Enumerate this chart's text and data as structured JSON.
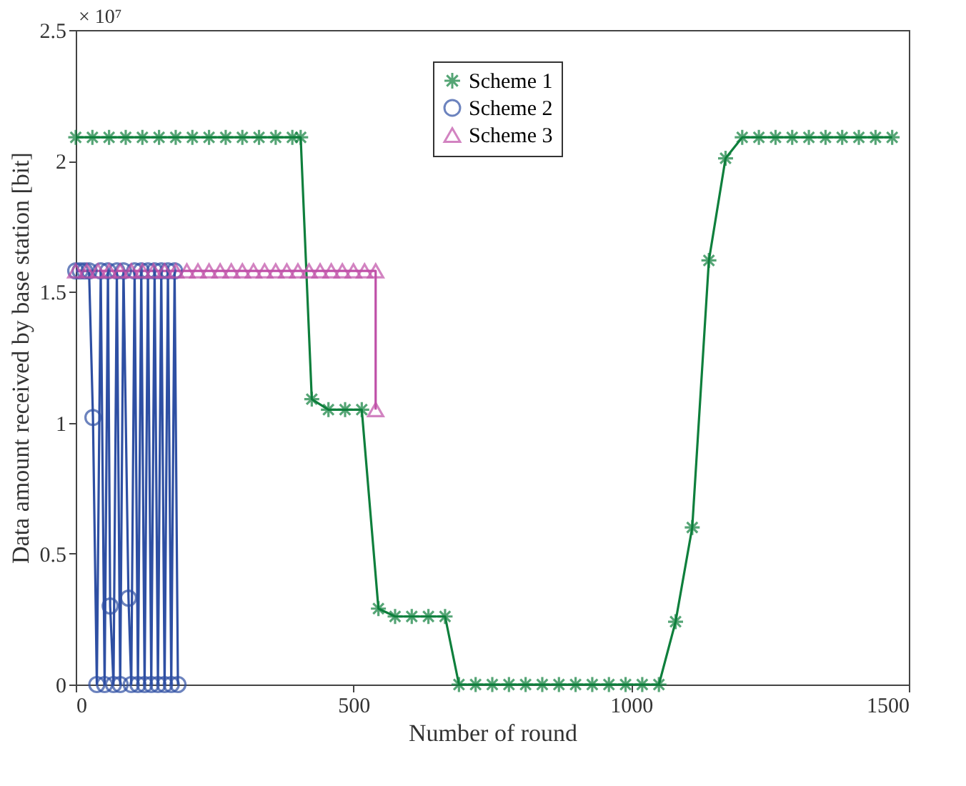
{
  "chart_data": {
    "type": "line",
    "xlabel": "Number of round",
    "ylabel": "Data amount received by base station [bit]",
    "annotations": [
      "× 10⁷"
    ],
    "xlim": [
      0,
      1500
    ],
    "xticks": [
      0,
      500,
      1000,
      1500
    ],
    "ylim": [
      0,
      2.5
    ],
    "yticks": [
      0,
      0.5,
      1,
      1.5,
      2,
      2.5
    ],
    "grid": false,
    "legend": "top",
    "line_style": "solid",
    "series": [
      {
        "name": "Scheme 1",
        "color": "#0e7f3c",
        "marker": "cross",
        "x": [
          0,
          30,
          60,
          90,
          120,
          150,
          180,
          210,
          240,
          270,
          300,
          330,
          360,
          390,
          405,
          425,
          455,
          485,
          515,
          545,
          575,
          605,
          635,
          665,
          690,
          720,
          750,
          780,
          810,
          840,
          870,
          900,
          930,
          960,
          990,
          1020,
          1050,
          1080,
          1110,
          1140,
          1170,
          1200,
          1230,
          1260,
          1290,
          1320,
          1350,
          1380,
          1410,
          1440,
          1470
        ],
        "values": [
          2.09,
          2.09,
          2.09,
          2.09,
          2.09,
          2.09,
          2.09,
          2.09,
          2.09,
          2.09,
          2.09,
          2.09,
          2.09,
          2.09,
          2.09,
          1.09,
          1.05,
          1.05,
          1.05,
          0.29,
          0.26,
          0.26,
          0.26,
          0.26,
          0,
          0,
          0,
          0,
          0,
          0,
          0,
          0,
          0,
          0,
          0,
          0,
          0,
          0.24,
          0.6,
          1.62,
          2.01,
          2.09,
          2.09,
          2.09,
          2.09,
          2.09,
          2.09,
          2.09,
          2.09,
          2.09,
          2.09
        ]
      },
      {
        "name": "Scheme 2",
        "color": "#2e4fa3",
        "marker": "circle",
        "x": [
          0,
          8,
          16,
          24,
          31,
          38,
          45,
          52,
          58,
          62,
          68,
          74,
          80,
          86,
          95,
          100,
          106,
          112,
          118,
          124,
          130,
          136,
          142,
          148,
          154,
          160,
          166,
          172,
          178,
          184
        ],
        "values": [
          1.58,
          1.58,
          1.58,
          1.58,
          1.02,
          0,
          1.58,
          0,
          1.58,
          0.3,
          0,
          1.58,
          0,
          1.58,
          0.33,
          0,
          1.58,
          0,
          1.58,
          0,
          1.58,
          0,
          1.58,
          0,
          1.58,
          0,
          1.58,
          0,
          1.58,
          0
        ]
      },
      {
        "name": "Scheme 3",
        "color": "#c050a8",
        "marker": "triangle",
        "x": [
          0,
          20,
          40,
          60,
          80,
          100,
          120,
          140,
          160,
          180,
          200,
          220,
          240,
          260,
          280,
          300,
          320,
          340,
          360,
          380,
          400,
          420,
          440,
          460,
          480,
          500,
          520,
          540,
          540
        ],
        "values": [
          1.58,
          1.58,
          1.58,
          1.58,
          1.58,
          1.58,
          1.58,
          1.58,
          1.58,
          1.58,
          1.58,
          1.58,
          1.58,
          1.58,
          1.58,
          1.58,
          1.58,
          1.58,
          1.58,
          1.58,
          1.58,
          1.58,
          1.58,
          1.58,
          1.58,
          1.58,
          1.58,
          1.58,
          1.05
        ]
      }
    ]
  }
}
